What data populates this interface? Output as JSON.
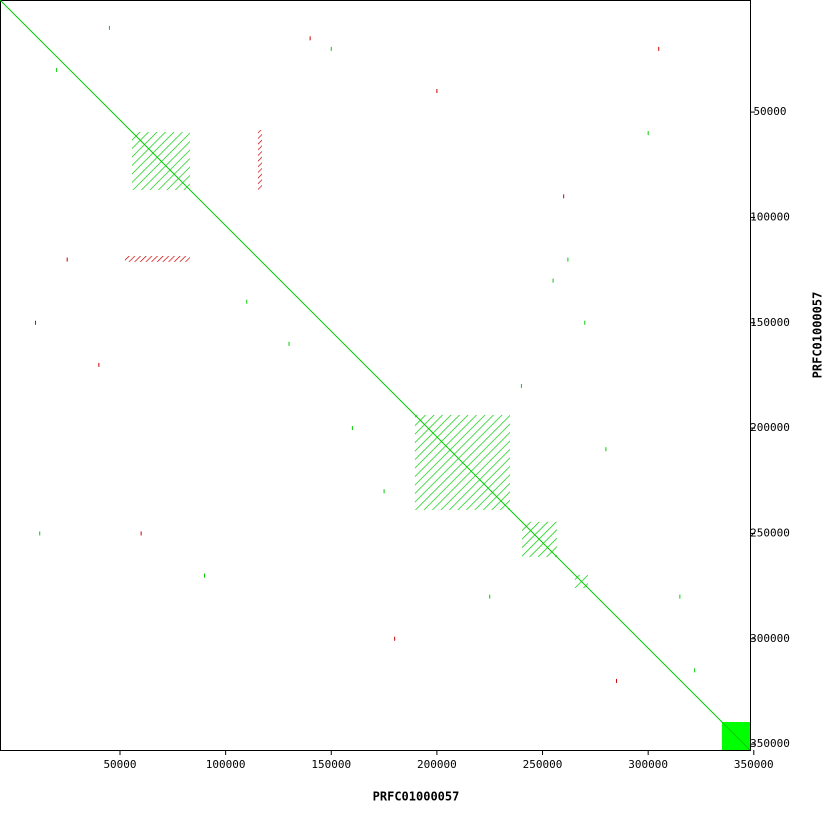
{
  "chart_data": {
    "type": "dotplot",
    "x_label": "PRFC01000057",
    "y_label": "PRFC01000057",
    "xlim": [
      -6800,
      348200
    ],
    "ylim": [
      -3200,
      352800
    ],
    "xticks": [
      50000,
      100000,
      150000,
      200000,
      250000,
      300000,
      350000
    ],
    "yticks": [
      50000,
      100000,
      150000,
      200000,
      250000,
      300000,
      350000
    ],
    "diagonal": {
      "color": "#00cc00",
      "x": [
        -6800,
        348200
      ],
      "y": [
        -3200,
        352800
      ]
    },
    "blocks": [
      {
        "color": "#00cc00",
        "style": "hatch",
        "x": [
          55700,
          83100
        ],
        "y": [
          59450,
          87000
        ]
      },
      {
        "color": "#00cc00",
        "style": "hatch",
        "x": [
          189600,
          234600
        ],
        "y": [
          193760,
          238850
        ]
      },
      {
        "color": "#00cc00",
        "style": "hatch",
        "x": [
          240300,
          256800
        ],
        "y": [
          244500,
          261150
        ]
      },
      {
        "color": "#00cc00",
        "style": "hatch",
        "x": [
          265300,
          271500
        ],
        "y": [
          269700,
          275900
        ]
      },
      {
        "color": "#00ff00",
        "style": "solid",
        "x": [
          334900,
          348200
        ],
        "y": [
          339500,
          352800
        ]
      },
      {
        "color": "#cc0000",
        "style": "hatch",
        "x": [
          115300,
          117200
        ],
        "y": [
          58500,
          87000
        ]
      },
      {
        "color": "#cc0000",
        "style": "hatch",
        "x": [
          52400,
          83100
        ],
        "y": [
          118300,
          121100
        ]
      }
    ],
    "series": [
      {
        "color": "#00cc00",
        "x": [
          20000,
          45000,
          110000,
          130000,
          150000,
          175000,
          240000,
          255000,
          262000,
          280000,
          300000,
          315000,
          12000,
          90000,
          160000,
          225000,
          270000,
          322000
        ],
        "y": [
          30000,
          10000,
          140000,
          160000,
          20000,
          230000,
          180000,
          130000,
          120000,
          210000,
          60000,
          280000,
          250000,
          270000,
          200000,
          280000,
          150000,
          315000
        ]
      },
      {
        "color": "#cc0000",
        "x": [
          25000,
          40000,
          60000,
          140000,
          200000,
          260000,
          305000,
          285000,
          10000,
          180000
        ],
        "y": [
          120000,
          170000,
          250000,
          15000,
          40000,
          90000,
          20000,
          320000,
          150000,
          300000
        ]
      }
    ]
  }
}
